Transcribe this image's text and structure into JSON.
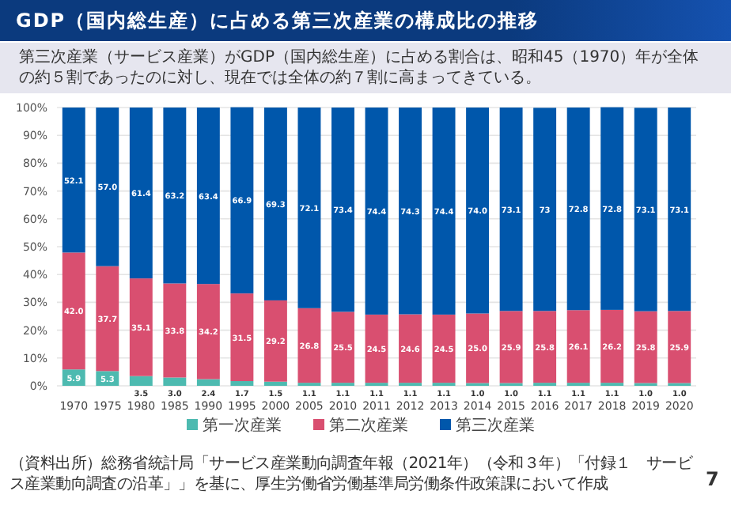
{
  "chart_data": {
    "type": "bar",
    "stacked": true,
    "title": "GDP（国内総生産）に占める第三次産業の構成比の推移",
    "subtitle": "第三次産業（サービス産業）がGDP（国内総生産）に占める割合は、昭和45（1970）年が全体の約５割であったのに対し、現在では全体の約７割に高まってきている。",
    "annotations": [
      "（資料出所）総務省統計局「サービス産業動向調査年報（2021年）（令和３年）「付録１　サービス産業動向調査の沿革」」を基に、厚生労働省労働基準局労働条件政策課において作成",
      "7"
    ],
    "categories": [
      "1970",
      "1975",
      "1980",
      "1985",
      "1990",
      "1995",
      "2000",
      "2005",
      "2010",
      "2011",
      "2012",
      "2013",
      "2014",
      "2015",
      "2016",
      "2017",
      "2018",
      "2019",
      "2020"
    ],
    "series": [
      {
        "name": "第一次産業",
        "color": "#4dbab0",
        "values": [
          5.9,
          5.3,
          3.5,
          3.0,
          2.4,
          1.7,
          1.5,
          1.1,
          1.1,
          1.1,
          1.1,
          1.1,
          1.0,
          1.0,
          1.1,
          1.1,
          1.1,
          1.0,
          1.0
        ],
        "value_labels": [
          "5.9",
          "5.3",
          "3.5",
          "3.0",
          "2.4",
          "1.7",
          "1.5",
          "1.1",
          "1.1",
          "1.1",
          "1.1",
          "1.1",
          "1.0",
          "1.0",
          "1.1",
          "1.1",
          "1.1",
          "1.0",
          "1.0"
        ]
      },
      {
        "name": "第二次産業",
        "color": "#d94f70",
        "values": [
          42.0,
          37.7,
          35.1,
          33.8,
          34.2,
          31.5,
          29.2,
          26.8,
          25.5,
          24.5,
          24.6,
          24.5,
          25.0,
          25.9,
          25.8,
          26.1,
          26.2,
          25.8,
          25.9
        ],
        "value_labels": [
          "42.0",
          "37.7",
          "35.1",
          "33.8",
          "34.2",
          "31.5",
          "29.2",
          "26.8",
          "25.5",
          "24.5",
          "24.6",
          "24.5",
          "25.0",
          "25.9",
          "25.8",
          "26.1",
          "26.2",
          "25.8",
          "25.9"
        ]
      },
      {
        "name": "第三次産業",
        "color": "#0057ab",
        "values": [
          52.1,
          57.0,
          61.4,
          63.2,
          63.4,
          66.9,
          69.3,
          72.1,
          73.4,
          74.4,
          74.3,
          74.4,
          74.0,
          73.1,
          73,
          72.8,
          72.8,
          73.1,
          73.1
        ],
        "value_labels": [
          "52.1",
          "57.0",
          "61.4",
          "63.2",
          "63.4",
          "66.9",
          "69.3",
          "72.1",
          "73.4",
          "74.4",
          "74.3",
          "74.4",
          "74.0",
          "73.1",
          "73",
          "72.8",
          "72.8",
          "73.1",
          "73.1"
        ]
      }
    ],
    "ylim": [
      0,
      100
    ],
    "yticks": [
      {
        "value": 0,
        "label": "0%"
      },
      {
        "value": 10,
        "label": "10%"
      },
      {
        "value": 20,
        "label": "20%"
      },
      {
        "value": 30,
        "label": "30%"
      },
      {
        "value": 40,
        "label": "40%"
      },
      {
        "value": 50,
        "label": "50%"
      },
      {
        "value": 60,
        "label": "60%"
      },
      {
        "value": 70,
        "label": "70%"
      },
      {
        "value": 80,
        "label": "80%"
      },
      {
        "value": 90,
        "label": "90%"
      },
      {
        "value": 100,
        "label": "100%"
      }
    ],
    "grid": "y",
    "legend": "bottom"
  }
}
